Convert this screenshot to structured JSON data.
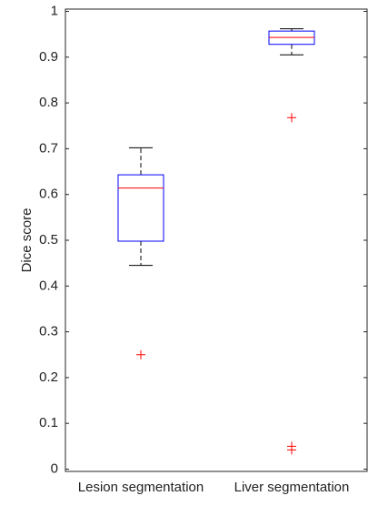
{
  "chart_data": {
    "type": "box",
    "y_label": "Dice score",
    "categories": [
      "Lesion segmentation",
      "Liver segmentation"
    ],
    "boxes": [
      {
        "whisker_low": 0.445,
        "q1": 0.498,
        "median": 0.614,
        "q3": 0.643,
        "whisker_high": 0.702,
        "outliers": [
          0.25
        ]
      },
      {
        "whisker_low": 0.905,
        "q1": 0.928,
        "median": 0.943,
        "q3": 0.957,
        "whisker_high": 0.962,
        "outliers": [
          0.768,
          0.05,
          0.042
        ]
      }
    ],
    "box_color": "#0000ff",
    "median_color": "#ff0000",
    "whisker_color": "#000000",
    "outlier_color": "#ff0000",
    "ylim": [
      -0.005,
      1.005
    ],
    "yticks": [
      0,
      0.1,
      0.2,
      0.3,
      0.4,
      0.5,
      0.6,
      0.7,
      0.8,
      0.9,
      1
    ]
  }
}
